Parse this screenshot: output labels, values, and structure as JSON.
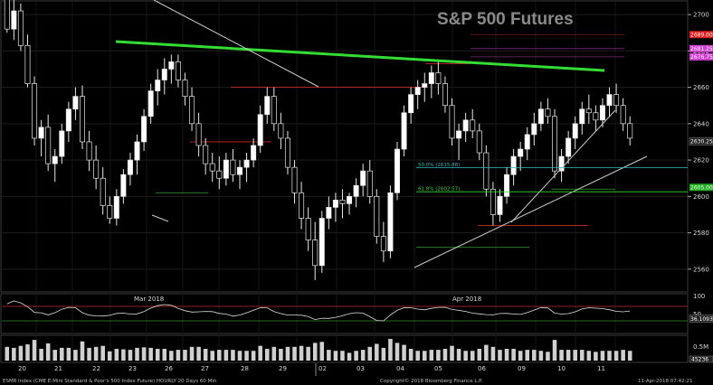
{
  "chart_data": {
    "type": "candlestick",
    "title": "S&P 500 Futures",
    "y_axis": {
      "ticks": [
        2560,
        2580,
        2600,
        2620,
        2640,
        2660,
        2680,
        2700
      ],
      "ylim": [
        2548,
        2706
      ]
    },
    "x_axis": {
      "day_labels": [
        "20",
        "21",
        "22",
        "23",
        "26",
        "27",
        "28",
        "29",
        "02",
        "03",
        "04",
        "05",
        "06",
        "09",
        "10",
        "11"
      ],
      "month_labels": [
        "Mar 2018",
        "Apr 2018"
      ]
    },
    "price_tags": [
      {
        "label": "2689.00",
        "value": 2689.0,
        "color": "#e02020"
      },
      {
        "label": "2681.25",
        "value": 2681.25,
        "color": "#d040d0"
      },
      {
        "label": "2676.75",
        "value": 2676.75,
        "color": "#d040d0"
      },
      {
        "label": "2630.25",
        "value": 2630.25,
        "color": "#222222"
      },
      {
        "label": "2605.00",
        "value": 2605.0,
        "color": "#22aa22"
      }
    ],
    "fib_levels": [
      {
        "label": "50.0% (2615.88)",
        "value": 2615.88,
        "color": "#33bbbb"
      },
      {
        "label": "61.8% (2602.57)",
        "value": 2602.57,
        "color": "#33dd33"
      }
    ],
    "rsi_panel": {
      "ticks": [
        100,
        50
      ],
      "tag": "36.1093",
      "upper": 70,
      "lower": 30
    },
    "volume_panel": {
      "ticks": [
        "0.5M",
        "45236"
      ]
    },
    "hourly_bars": [
      [
        2712,
        2714,
        2690,
        2692
      ],
      [
        2692,
        2708,
        2686,
        2702
      ],
      [
        2702,
        2706,
        2680,
        2683
      ],
      [
        2683,
        2689,
        2660,
        2662
      ],
      [
        2662,
        2666,
        2628,
        2632
      ],
      [
        2632,
        2642,
        2622,
        2638
      ],
      [
        2638,
        2645,
        2614,
        2618
      ],
      [
        2618,
        2626,
        2608,
        2622
      ],
      [
        2622,
        2640,
        2618,
        2636
      ],
      [
        2636,
        2652,
        2630,
        2648
      ],
      [
        2648,
        2660,
        2642,
        2655
      ],
      [
        2655,
        2661,
        2626,
        2630
      ],
      [
        2630,
        2636,
        2614,
        2620
      ],
      [
        2620,
        2628,
        2604,
        2610
      ],
      [
        2610,
        2616,
        2590,
        2595
      ],
      [
        2595,
        2600,
        2585,
        2588
      ],
      [
        2588,
        2604,
        2584,
        2600
      ],
      [
        2600,
        2615,
        2596,
        2612
      ],
      [
        2612,
        2624,
        2606,
        2620
      ],
      [
        2620,
        2634,
        2612,
        2630
      ],
      [
        2630,
        2648,
        2625,
        2644
      ],
      [
        2644,
        2662,
        2640,
        2658
      ],
      [
        2658,
        2670,
        2650,
        2664
      ],
      [
        2664,
        2676,
        2656,
        2670
      ],
      [
        2670,
        2678,
        2662,
        2674
      ],
      [
        2674,
        2678,
        2660,
        2664
      ],
      [
        2664,
        2668,
        2650,
        2655
      ],
      [
        2655,
        2660,
        2636,
        2640
      ],
      [
        2640,
        2646,
        2622,
        2628
      ],
      [
        2628,
        2632,
        2612,
        2618
      ],
      [
        2618,
        2624,
        2608,
        2614
      ],
      [
        2614,
        2622,
        2604,
        2610
      ],
      [
        2610,
        2624,
        2606,
        2620
      ],
      [
        2620,
        2626,
        2608,
        2612
      ],
      [
        2612,
        2620,
        2604,
        2616
      ],
      [
        2616,
        2624,
        2608,
        2620
      ],
      [
        2620,
        2632,
        2616,
        2628
      ],
      [
        2628,
        2650,
        2624,
        2645
      ],
      [
        2645,
        2660,
        2640,
        2655
      ],
      [
        2655,
        2660,
        2636,
        2640
      ],
      [
        2640,
        2646,
        2626,
        2632
      ],
      [
        2632,
        2636,
        2612,
        2616
      ],
      [
        2616,
        2620,
        2596,
        2602
      ],
      [
        2602,
        2608,
        2582,
        2588
      ],
      [
        2588,
        2594,
        2570,
        2576
      ],
      [
        2576,
        2586,
        2554,
        2562
      ],
      [
        2562,
        2592,
        2558,
        2588
      ],
      [
        2588,
        2600,
        2582,
        2594
      ],
      [
        2594,
        2602,
        2586,
        2598
      ],
      [
        2598,
        2604,
        2588,
        2596
      ],
      [
        2596,
        2602,
        2590,
        2600
      ],
      [
        2600,
        2610,
        2594,
        2606
      ],
      [
        2606,
        2618,
        2600,
        2614
      ],
      [
        2614,
        2620,
        2596,
        2600
      ],
      [
        2600,
        2604,
        2574,
        2578
      ],
      [
        2578,
        2586,
        2564,
        2570
      ],
      [
        2570,
        2606,
        2566,
        2602
      ],
      [
        2602,
        2630,
        2598,
        2626
      ],
      [
        2626,
        2650,
        2622,
        2646
      ],
      [
        2646,
        2660,
        2640,
        2656
      ],
      [
        2656,
        2664,
        2648,
        2660
      ],
      [
        2660,
        2668,
        2652,
        2662
      ],
      [
        2662,
        2672,
        2654,
        2668
      ],
      [
        2668,
        2674,
        2656,
        2662
      ],
      [
        2662,
        2666,
        2646,
        2650
      ],
      [
        2650,
        2654,
        2628,
        2632
      ],
      [
        2632,
        2640,
        2620,
        2636
      ],
      [
        2636,
        2646,
        2630,
        2642
      ],
      [
        2642,
        2648,
        2632,
        2636
      ],
      [
        2636,
        2640,
        2620,
        2624
      ],
      [
        2624,
        2628,
        2600,
        2604
      ],
      [
        2604,
        2608,
        2584,
        2590
      ],
      [
        2590,
        2604,
        2586,
        2600
      ],
      [
        2600,
        2616,
        2596,
        2612
      ],
      [
        2612,
        2626,
        2606,
        2622
      ],
      [
        2622,
        2630,
        2614,
        2626
      ],
      [
        2626,
        2638,
        2620,
        2634
      ],
      [
        2634,
        2646,
        2628,
        2640
      ],
      [
        2640,
        2652,
        2636,
        2648
      ],
      [
        2648,
        2654,
        2640,
        2644
      ],
      [
        2644,
        2648,
        2610,
        2614
      ],
      [
        2614,
        2626,
        2608,
        2622
      ],
      [
        2622,
        2636,
        2618,
        2632
      ],
      [
        2632,
        2644,
        2626,
        2640
      ],
      [
        2640,
        2652,
        2634,
        2648
      ],
      [
        2648,
        2656,
        2640,
        2646
      ],
      [
        2646,
        2650,
        2636,
        2642
      ],
      [
        2642,
        2654,
        2638,
        2650
      ],
      [
        2650,
        2660,
        2644,
        2656
      ],
      [
        2656,
        2662,
        2646,
        2650
      ],
      [
        2650,
        2654,
        2636,
        2640
      ],
      [
        2640,
        2644,
        2628,
        2632
      ]
    ]
  }
}
